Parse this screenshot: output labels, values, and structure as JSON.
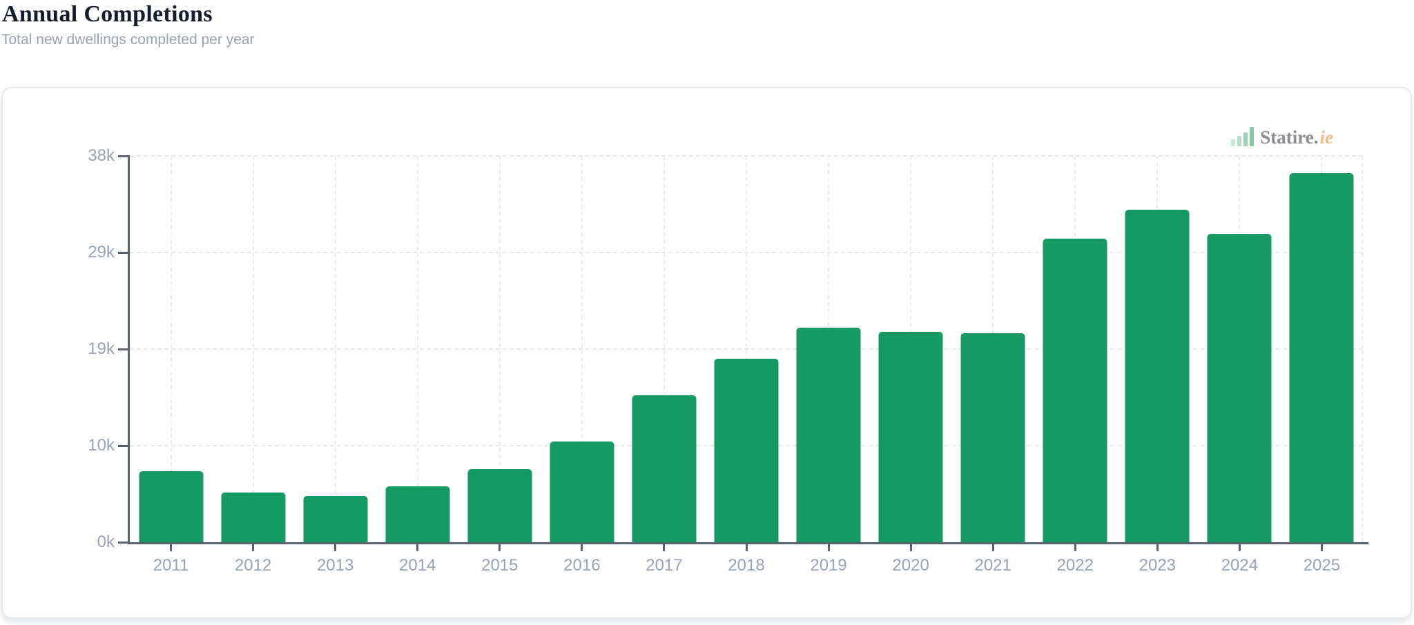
{
  "page": {
    "title": "Annual Completions",
    "subtitle": "Total new dwellings completed per year"
  },
  "brand": {
    "icon": "bar-chart-icon",
    "name": "Statire.",
    "tld": "ie"
  },
  "chart_data": {
    "type": "bar",
    "title": "Annual Completions",
    "subtitle": "Total new dwellings completed per year",
    "series_name": "Total new dwellings completed per year",
    "categories": [
      "2011",
      "2012",
      "2013",
      "2014",
      "2015",
      "2016",
      "2017",
      "2018",
      "2019",
      "2020",
      "2021",
      "2022",
      "2023",
      "2024",
      "2025"
    ],
    "values": [
      6994,
      4911,
      4575,
      5518,
      7219,
      9915,
      14446,
      18072,
      21134,
      20676,
      20560,
      29851,
      32695,
      30330,
      36300
    ],
    "ylim": [
      0,
      38000
    ],
    "yticks": [
      {
        "value": 0,
        "label": "0k"
      },
      {
        "value": 9500,
        "label": "10k"
      },
      {
        "value": 19000,
        "label": "19k"
      },
      {
        "value": 28500,
        "label": "29k"
      },
      {
        "value": 38000,
        "label": "38k"
      }
    ],
    "xlabel": "",
    "ylabel": "",
    "grid": true,
    "legend_position": "none",
    "bar_color": "#179a62"
  },
  "colors": {
    "bar": "#179a62",
    "axis": "#5a6270",
    "grid": "#ebebed",
    "tick_label": "#99a3b5",
    "title": "#141d2c",
    "subtitle": "#99a2ae",
    "card_border": "#e4e7ec",
    "logo_text": "#8c8c91",
    "logo_accent": "#f3ba8e"
  }
}
